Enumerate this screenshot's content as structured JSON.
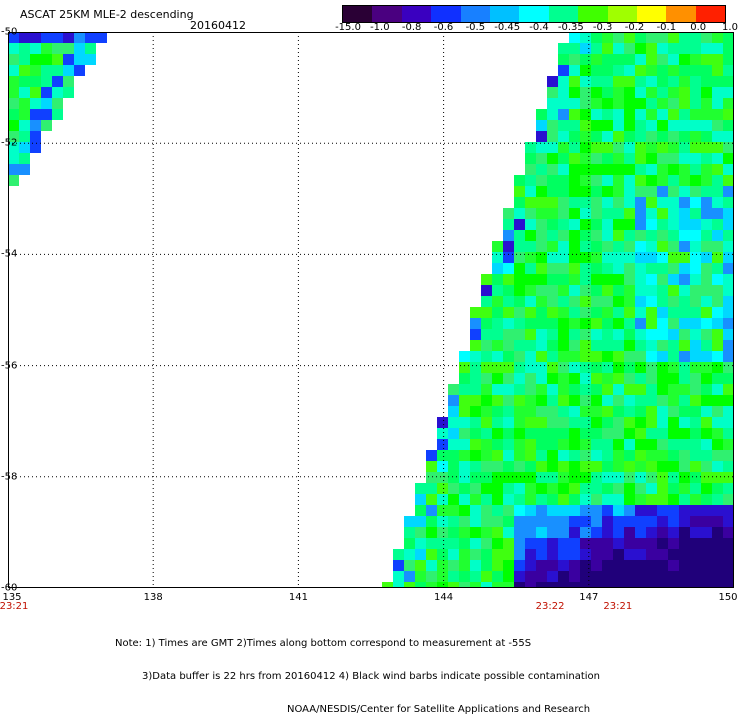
{
  "header": {
    "title": "ASCAT 25KM MLE-2 descending",
    "date": "20160412"
  },
  "colorbar": {
    "labels": [
      "-15.0",
      "-1.0",
      "-0.8",
      "-0.6",
      "-0.5",
      "-0.45",
      "-0.4",
      "-0.35",
      "-0.3",
      "-0.2",
      "-0.1",
      "0.0",
      "1.0"
    ],
    "colors": [
      "#2a0035",
      "#4a0080",
      "#3a00c0",
      "#1030ff",
      "#1880ff",
      "#00c0ff",
      "#00ffff",
      "#00ff90",
      "#40ff00",
      "#a0ff00",
      "#ffff00",
      "#ff9000",
      "#ff2000"
    ]
  },
  "map": {
    "lon_labels": [
      "135",
      "138",
      "141",
      "144",
      "147",
      "150"
    ],
    "lat_labels": [
      "-50",
      "-52",
      "-54",
      "-56",
      "-58",
      "-60"
    ],
    "lon_range": [
      135,
      150
    ],
    "lat_range": [
      -60,
      -50
    ],
    "grid": "dotted"
  },
  "times": [
    {
      "label": "23:21",
      "lon": 135
    },
    {
      "label": "23:22",
      "lon": 146.2
    },
    {
      "label": "23:21",
      "lon": 147.6
    }
  ],
  "notes": [
    "Note: 1) Times are GMT 2)Times along bottom correspond to measurement at -55S",
    "3)Data buffer is 22 hrs from 20160412 4) Black wind barbs indicate possible contamination",
    "NOAA/NESDIS/Center for Satellite Applications and Research"
  ]
}
